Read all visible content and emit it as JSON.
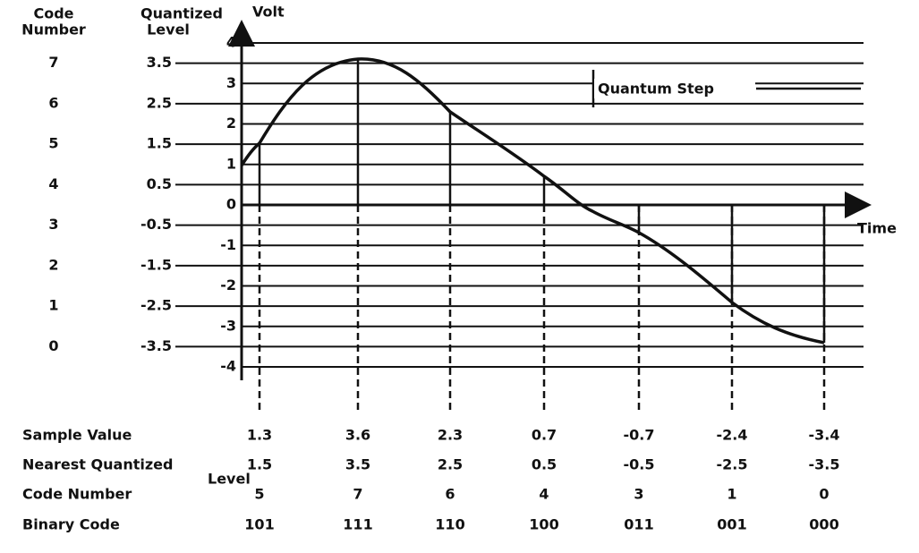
{
  "header": {
    "code_number": [
      "Code",
      "Number"
    ],
    "quantized_level": [
      "Quantized",
      "Level"
    ]
  },
  "axis": {
    "y_label": "Volt",
    "x_label": "Time",
    "y_ticks": [
      "4",
      "3",
      "2",
      "1",
      "0",
      "-1",
      "-2",
      "-3",
      "-4"
    ]
  },
  "annotation": "Quantum Step",
  "levels": [
    {
      "code": "7",
      "level": "3.5"
    },
    {
      "code": "6",
      "level": "2.5"
    },
    {
      "code": "5",
      "level": "1.5"
    },
    {
      "code": "4",
      "level": "0.5"
    },
    {
      "code": "3",
      "level": "-0.5"
    },
    {
      "code": "2",
      "level": "-1.5"
    },
    {
      "code": "1",
      "level": "-2.5"
    },
    {
      "code": "0",
      "level": "-3.5"
    }
  ],
  "table": {
    "rows": [
      {
        "label": [
          "Sample Value"
        ],
        "cells": [
          "1.3",
          "3.6",
          "2.3",
          "0.7",
          "-0.7",
          "-2.4",
          "-3.4"
        ]
      },
      {
        "label": [
          "Nearest Quantized",
          "Level"
        ],
        "cells": [
          "1.5",
          "3.5",
          "2.5",
          "0.5",
          "-0.5",
          "-2.5",
          "-3.5"
        ]
      },
      {
        "label": [
          "Code Number"
        ],
        "cells": [
          "5",
          "7",
          "6",
          "4",
          "3",
          "1",
          "0"
        ]
      },
      {
        "label": [
          "Binary Code"
        ],
        "cells": [
          "101",
          "111",
          "110",
          "100",
          "011",
          "001",
          "000"
        ]
      }
    ]
  }
}
